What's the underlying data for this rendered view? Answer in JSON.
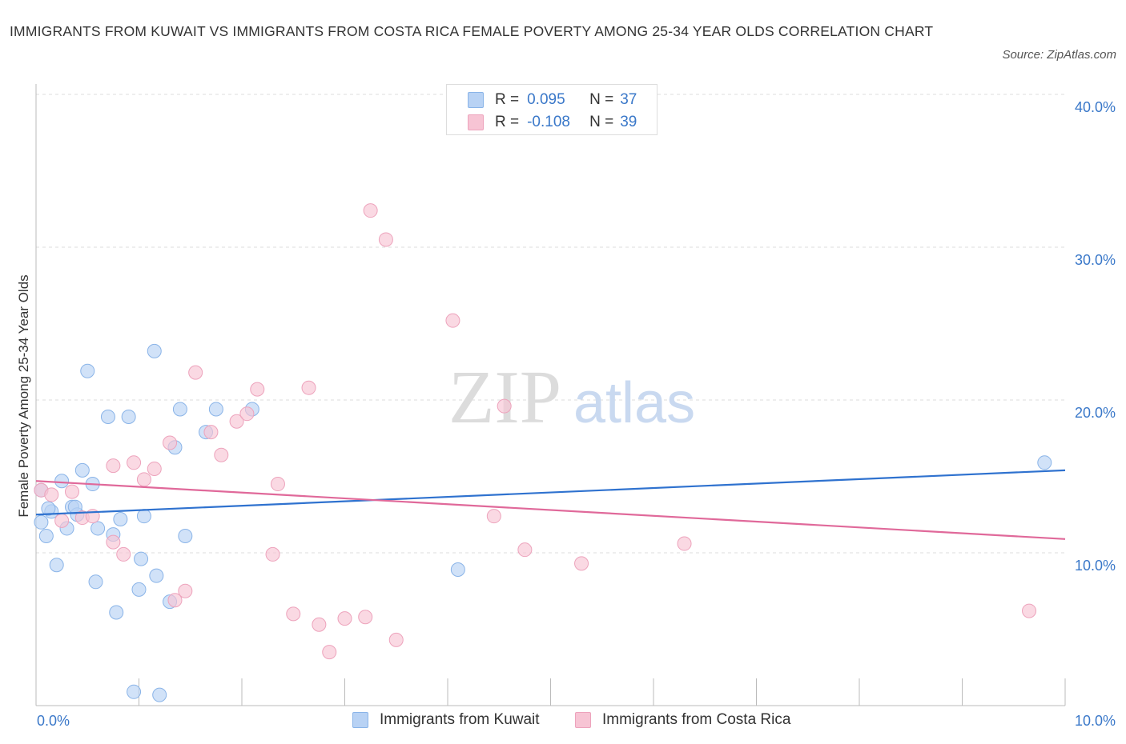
{
  "title": "IMMIGRANTS FROM KUWAIT VS IMMIGRANTS FROM COSTA RICA FEMALE POVERTY AMONG 25-34 YEAR OLDS CORRELATION CHART",
  "source": "Source: ZipAtlas.com",
  "watermark": {
    "zip": "ZIP",
    "atlas": "atlas"
  },
  "legend": {
    "rows": [
      {
        "r_label": "R =",
        "r_value": "0.095",
        "n_label": "N =",
        "n_value": "37"
      },
      {
        "r_label": "R =",
        "r_value": "-0.108",
        "n_label": "N =",
        "n_value": "39"
      }
    ]
  },
  "colors": {
    "kuwait_fill": "#b8d2f4",
    "kuwait_stroke": "#8ab4e8",
    "kuwait_line": "#2f72cf",
    "costa_fill": "#f7c4d4",
    "costa_stroke": "#eda3bc",
    "costa_line": "#e0699a",
    "tick_label": "#3a78c9",
    "grid": "#dddddd"
  },
  "chart_data": {
    "type": "scatter",
    "title": "IMMIGRANTS FROM KUWAIT VS IMMIGRANTS FROM COSTA RICA FEMALE POVERTY AMONG 25-34 YEAR OLDS CORRELATION CHART",
    "xlabel": "",
    "ylabel": "Female Poverty Among 25-34 Year Olds",
    "xlim": [
      0,
      10
    ],
    "ylim": [
      0,
      40
    ],
    "x_tick_labels": [
      "0.0%",
      "10.0%"
    ],
    "y_ticks": [
      10,
      20,
      30,
      40
    ],
    "y_tick_labels": [
      "10.0%",
      "20.0%",
      "30.0%",
      "40.0%"
    ],
    "grid": true,
    "legend_position": "top-center",
    "series": [
      {
        "name": "Immigrants from Kuwait",
        "points": [
          [
            0.05,
            12.0
          ],
          [
            0.1,
            11.1
          ],
          [
            0.15,
            12.7
          ],
          [
            0.2,
            9.2
          ],
          [
            0.25,
            14.7
          ],
          [
            0.3,
            11.6
          ],
          [
            0.35,
            13.0
          ],
          [
            0.45,
            15.4
          ],
          [
            0.5,
            21.9
          ],
          [
            0.55,
            14.5
          ],
          [
            0.58,
            8.1
          ],
          [
            0.6,
            11.6
          ],
          [
            0.7,
            18.9
          ],
          [
            0.75,
            11.2
          ],
          [
            0.78,
            6.1
          ],
          [
            0.82,
            12.2
          ],
          [
            0.9,
            18.9
          ],
          [
            0.95,
            0.9
          ],
          [
            1.0,
            7.6
          ],
          [
            1.02,
            9.6
          ],
          [
            1.05,
            12.4
          ],
          [
            1.15,
            23.2
          ],
          [
            1.17,
            8.5
          ],
          [
            1.2,
            0.7
          ],
          [
            1.3,
            6.8
          ],
          [
            1.35,
            16.9
          ],
          [
            1.4,
            19.4
          ],
          [
            1.45,
            11.1
          ],
          [
            1.65,
            17.9
          ],
          [
            1.75,
            19.4
          ],
          [
            2.1,
            19.4
          ],
          [
            0.4,
            12.5
          ],
          [
            0.12,
            12.9
          ],
          [
            0.38,
            13.0
          ],
          [
            0.05,
            14.1
          ],
          [
            4.1,
            8.9
          ],
          [
            9.8,
            15.9
          ]
        ],
        "trend": [
          [
            0,
            12.5
          ],
          [
            10,
            15.4
          ]
        ]
      },
      {
        "name": "Immigrants from Costa Rica",
        "points": [
          [
            0.05,
            14.1
          ],
          [
            0.15,
            13.8
          ],
          [
            0.25,
            12.1
          ],
          [
            0.35,
            14.0
          ],
          [
            0.45,
            12.3
          ],
          [
            0.55,
            12.4
          ],
          [
            0.75,
            15.7
          ],
          [
            0.75,
            10.7
          ],
          [
            0.85,
            9.9
          ],
          [
            0.95,
            15.9
          ],
          [
            1.05,
            14.8
          ],
          [
            1.15,
            15.5
          ],
          [
            1.3,
            17.2
          ],
          [
            1.35,
            6.9
          ],
          [
            1.45,
            7.5
          ],
          [
            1.55,
            21.8
          ],
          [
            1.7,
            17.9
          ],
          [
            1.8,
            16.4
          ],
          [
            1.95,
            18.6
          ],
          [
            2.05,
            19.1
          ],
          [
            2.15,
            20.7
          ],
          [
            2.3,
            9.9
          ],
          [
            2.35,
            14.5
          ],
          [
            2.5,
            6.0
          ],
          [
            2.65,
            20.8
          ],
          [
            2.75,
            5.3
          ],
          [
            2.85,
            3.5
          ],
          [
            3.0,
            5.7
          ],
          [
            3.2,
            5.8
          ],
          [
            3.25,
            32.4
          ],
          [
            3.4,
            30.5
          ],
          [
            3.5,
            4.3
          ],
          [
            4.05,
            25.2
          ],
          [
            4.45,
            12.4
          ],
          [
            4.55,
            19.6
          ],
          [
            4.75,
            10.2
          ],
          [
            5.3,
            9.3
          ],
          [
            6.3,
            10.6
          ],
          [
            9.65,
            6.2
          ]
        ],
        "trend": [
          [
            0,
            14.7
          ],
          [
            10,
            10.9
          ]
        ]
      }
    ]
  },
  "bottom_legend": [
    "Immigrants from Kuwait",
    "Immigrants from Costa Rica"
  ]
}
